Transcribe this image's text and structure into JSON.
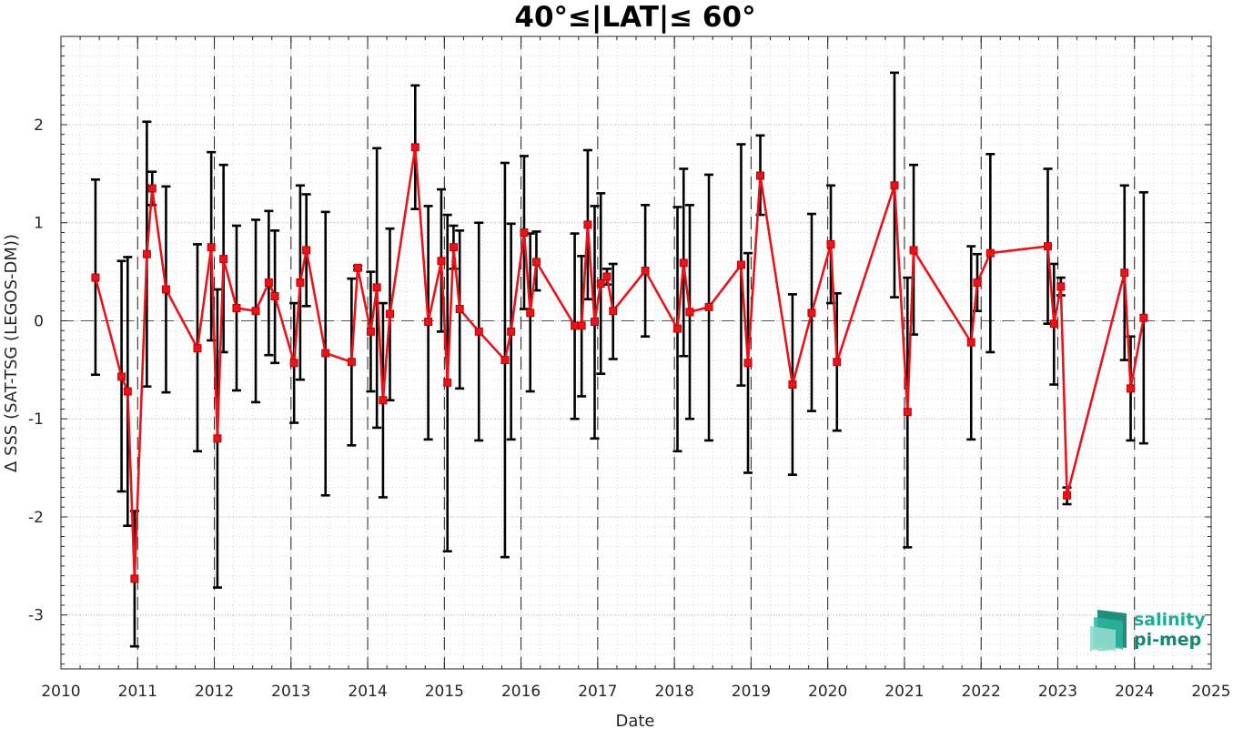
{
  "chart_data": {
    "type": "line",
    "title": "40°≤|LAT|≤ 60°",
    "xlabel": "Date",
    "ylabel": "Δ SSS (SAT-TSG (LEGOS-DM))",
    "xlim": [
      2010,
      2025
    ],
    "ylim": [
      -3.55,
      2.9
    ],
    "x_ticks": [
      "2010",
      "2011",
      "2012",
      "2013",
      "2014",
      "2015",
      "2016",
      "2017",
      "2018",
      "2019",
      "2020",
      "2021",
      "2022",
      "2023",
      "2024",
      "2025"
    ],
    "y_ticks": [
      "-3",
      "-2",
      "-1",
      "0",
      "1",
      "2"
    ],
    "grid": true,
    "series": [
      {
        "color": "#e8141b",
        "marker": "square",
        "points": [
          {
            "x": 2010.45,
            "y": 0.44,
            "lo": -0.55,
            "hi": 1.44
          },
          {
            "x": 2010.79,
            "y": -0.57,
            "lo": -1.74,
            "hi": 0.61
          },
          {
            "x": 2010.87,
            "y": -0.72,
            "lo": -2.09,
            "hi": 0.65
          },
          {
            "x": 2010.96,
            "y": -2.63,
            "lo": -3.32,
            "hi": -1.94
          },
          {
            "x": 2011.12,
            "y": 0.68,
            "lo": -0.67,
            "hi": 2.03
          },
          {
            "x": 2011.19,
            "y": 1.35,
            "lo": 1.18,
            "hi": 1.52
          },
          {
            "x": 2011.37,
            "y": 0.32,
            "lo": -0.73,
            "hi": 1.37
          },
          {
            "x": 2011.78,
            "y": -0.28,
            "lo": -1.33,
            "hi": 0.78
          },
          {
            "x": 2011.96,
            "y": 0.75,
            "lo": -0.2,
            "hi": 1.72
          },
          {
            "x": 2012.04,
            "y": -1.2,
            "lo": -2.72,
            "hi": 0.32
          },
          {
            "x": 2012.12,
            "y": 0.63,
            "lo": -0.32,
            "hi": 1.59
          },
          {
            "x": 2012.29,
            "y": 0.13,
            "lo": -0.71,
            "hi": 0.97
          },
          {
            "x": 2012.54,
            "y": 0.1,
            "lo": -0.83,
            "hi": 1.03
          },
          {
            "x": 2012.71,
            "y": 0.39,
            "lo": -0.35,
            "hi": 1.12
          },
          {
            "x": 2012.79,
            "y": 0.25,
            "lo": -0.43,
            "hi": 0.92
          },
          {
            "x": 2013.04,
            "y": -0.43,
            "lo": -1.04,
            "hi": 0.18
          },
          {
            "x": 2013.12,
            "y": 0.39,
            "lo": -0.6,
            "hi": 1.38
          },
          {
            "x": 2013.2,
            "y": 0.72,
            "lo": 0.15,
            "hi": 1.29
          },
          {
            "x": 2013.45,
            "y": -0.33,
            "lo": -1.78,
            "hi": 1.11
          },
          {
            "x": 2013.79,
            "y": -0.42,
            "lo": -1.27,
            "hi": 0.43
          },
          {
            "x": 2013.87,
            "y": 0.54,
            "lo": 0.52,
            "hi": 0.56
          },
          {
            "x": 2014.04,
            "y": -0.11,
            "lo": -0.72,
            "hi": 0.5
          },
          {
            "x": 2014.12,
            "y": 0.34,
            "lo": -1.09,
            "hi": 1.76
          },
          {
            "x": 2014.2,
            "y": -0.81,
            "lo": -1.8,
            "hi": 0.18
          },
          {
            "x": 2014.29,
            "y": 0.07,
            "lo": -0.81,
            "hi": 0.94
          },
          {
            "x": 2014.62,
            "y": 1.77,
            "lo": 1.14,
            "hi": 2.4
          },
          {
            "x": 2014.79,
            "y": -0.01,
            "lo": -1.21,
            "hi": 1.17
          },
          {
            "x": 2014.96,
            "y": 0.61,
            "lo": -0.11,
            "hi": 1.34
          },
          {
            "x": 2015.04,
            "y": -0.63,
            "lo": -2.35,
            "hi": 1.08
          },
          {
            "x": 2015.12,
            "y": 0.75,
            "lo": 0.53,
            "hi": 0.97
          },
          {
            "x": 2015.2,
            "y": 0.12,
            "lo": -0.69,
            "hi": 0.92
          },
          {
            "x": 2015.45,
            "y": -0.11,
            "lo": -1.22,
            "hi": 1.0
          },
          {
            "x": 2015.79,
            "y": -0.4,
            "lo": -2.41,
            "hi": 1.61
          },
          {
            "x": 2015.87,
            "y": -0.11,
            "lo": -1.21,
            "hi": 0.99
          },
          {
            "x": 2016.04,
            "y": 0.9,
            "lo": 0.12,
            "hi": 1.68
          },
          {
            "x": 2016.12,
            "y": 0.08,
            "lo": -0.72,
            "hi": 0.89
          },
          {
            "x": 2016.2,
            "y": 0.6,
            "lo": 0.31,
            "hi": 0.91
          },
          {
            "x": 2016.7,
            "y": -0.05,
            "lo": -1.0,
            "hi": 0.89
          },
          {
            "x": 2016.79,
            "y": -0.05,
            "lo": -0.77,
            "hi": 0.66
          },
          {
            "x": 2016.87,
            "y": 0.98,
            "lo": 0.22,
            "hi": 1.74
          },
          {
            "x": 2016.96,
            "y": -0.01,
            "lo": -1.2,
            "hi": 1.17
          },
          {
            "x": 2017.04,
            "y": 0.38,
            "lo": -0.54,
            "hi": 1.3
          },
          {
            "x": 2017.12,
            "y": 0.45,
            "lo": 0.37,
            "hi": 0.53
          },
          {
            "x": 2017.2,
            "y": 0.1,
            "lo": -0.39,
            "hi": 0.58
          },
          {
            "x": 2017.62,
            "y": 0.51,
            "lo": -0.16,
            "hi": 1.18
          },
          {
            "x": 2018.04,
            "y": -0.08,
            "lo": -1.33,
            "hi": 1.16
          },
          {
            "x": 2018.12,
            "y": 0.59,
            "lo": -0.36,
            "hi": 1.55
          },
          {
            "x": 2018.2,
            "y": 0.09,
            "lo": -1.0,
            "hi": 1.18
          },
          {
            "x": 2018.45,
            "y": 0.14,
            "lo": -1.22,
            "hi": 1.49
          },
          {
            "x": 2018.87,
            "y": 0.57,
            "lo": -0.66,
            "hi": 1.8
          },
          {
            "x": 2018.96,
            "y": -0.43,
            "lo": -1.55,
            "hi": 0.69
          },
          {
            "x": 2019.12,
            "y": 1.48,
            "lo": 1.08,
            "hi": 1.89
          },
          {
            "x": 2019.54,
            "y": -0.65,
            "lo": -1.57,
            "hi": 0.27
          },
          {
            "x": 2019.79,
            "y": 0.08,
            "lo": -0.92,
            "hi": 1.09
          },
          {
            "x": 2020.04,
            "y": 0.78,
            "lo": 0.18,
            "hi": 1.38
          },
          {
            "x": 2020.12,
            "y": -0.42,
            "lo": -1.12,
            "hi": 0.28
          },
          {
            "x": 2020.87,
            "y": 1.38,
            "lo": 0.24,
            "hi": 2.53
          },
          {
            "x": 2021.04,
            "y": -0.93,
            "lo": -2.31,
            "hi": 0.44
          },
          {
            "x": 2021.12,
            "y": 0.72,
            "lo": -0.14,
            "hi": 1.59
          },
          {
            "x": 2021.87,
            "y": -0.22,
            "lo": -1.21,
            "hi": 0.76
          },
          {
            "x": 2021.95,
            "y": 0.39,
            "lo": 0.1,
            "hi": 0.68
          },
          {
            "x": 2022.12,
            "y": 0.69,
            "lo": -0.32,
            "hi": 1.7
          },
          {
            "x": 2022.87,
            "y": 0.76,
            "lo": -0.03,
            "hi": 1.55
          },
          {
            "x": 2022.95,
            "y": -0.03,
            "lo": -0.65,
            "hi": 0.58
          },
          {
            "x": 2023.04,
            "y": 0.35,
            "lo": 0.26,
            "hi": 0.44
          },
          {
            "x": 2023.12,
            "y": -1.78,
            "lo": -1.87,
            "hi": -1.7
          },
          {
            "x": 2023.87,
            "y": 0.49,
            "lo": -0.4,
            "hi": 1.38
          },
          {
            "x": 2023.95,
            "y": -0.69,
            "lo": -1.22,
            "hi": -0.16
          },
          {
            "x": 2024.12,
            "y": 0.03,
            "lo": -1.25,
            "hi": 1.31
          }
        ]
      }
    ]
  },
  "logo": {
    "line1": "salinity",
    "line2": "pi-mep",
    "color1": "#1cae96",
    "color2": "#17866f"
  }
}
